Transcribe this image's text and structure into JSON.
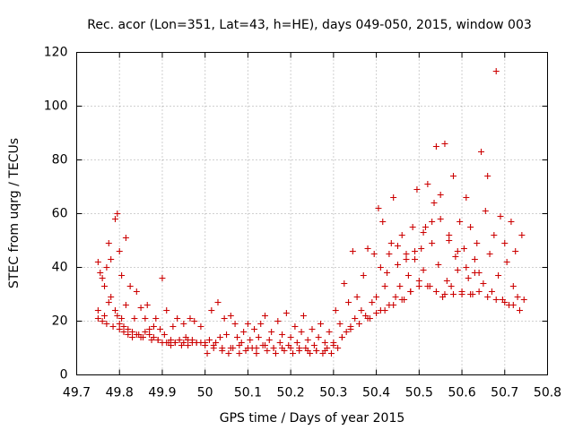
{
  "chart_data": {
    "type": "scatter",
    "title": "Rec. acor (Lon=351, Lat=43, h=HE), days 049-050, 2015, window 003",
    "xlabel": "GPS time / Days of year 2015",
    "ylabel": "STEC from uqrg / TECUs",
    "xlim": [
      49.7,
      50.8
    ],
    "ylim": [
      0,
      120
    ],
    "x_ticks": [
      "49.7",
      "49.8",
      "49.9",
      "50",
      "50.1",
      "50.2",
      "50.3",
      "50.4",
      "50.5",
      "50.6",
      "50.7",
      "50.8"
    ],
    "y_ticks": [
      "0",
      "20",
      "40",
      "60",
      "80",
      "100",
      "120"
    ],
    "grid": true,
    "marker": "+",
    "color": "#cc0000",
    "points": [
      [
        49.75,
        42
      ],
      [
        49.755,
        38
      ],
      [
        49.76,
        36
      ],
      [
        49.765,
        33
      ],
      [
        49.77,
        40
      ],
      [
        49.775,
        49
      ],
      [
        49.78,
        43
      ],
      [
        49.79,
        58
      ],
      [
        49.795,
        60
      ],
      [
        49.8,
        46
      ],
      [
        49.805,
        37
      ],
      [
        49.815,
        51
      ],
      [
        49.75,
        24
      ],
      [
        49.75,
        21
      ],
      [
        49.76,
        20
      ],
      [
        49.765,
        22
      ],
      [
        49.77,
        19
      ],
      [
        49.775,
        27
      ],
      [
        49.78,
        29
      ],
      [
        49.785,
        18
      ],
      [
        49.79,
        24
      ],
      [
        49.795,
        22
      ],
      [
        49.8,
        17
      ],
      [
        49.805,
        21
      ],
      [
        49.81,
        16
      ],
      [
        49.815,
        26
      ],
      [
        49.82,
        15
      ],
      [
        49.825,
        33
      ],
      [
        49.83,
        14
      ],
      [
        49.835,
        21
      ],
      [
        49.84,
        31
      ],
      [
        49.845,
        15
      ],
      [
        49.85,
        25
      ],
      [
        49.855,
        14
      ],
      [
        49.86,
        21
      ],
      [
        49.865,
        26
      ],
      [
        49.87,
        17
      ],
      [
        49.875,
        13
      ],
      [
        49.88,
        18
      ],
      [
        49.885,
        21
      ],
      [
        49.89,
        13
      ],
      [
        49.895,
        17
      ],
      [
        49.9,
        36
      ],
      [
        49.905,
        15
      ],
      [
        49.91,
        24
      ],
      [
        49.915,
        12
      ],
      [
        49.92,
        11
      ],
      [
        49.925,
        18
      ],
      [
        49.93,
        12
      ],
      [
        49.935,
        21
      ],
      [
        49.94,
        13
      ],
      [
        49.945,
        11
      ],
      [
        49.95,
        19
      ],
      [
        49.955,
        14
      ],
      [
        49.96,
        11
      ],
      [
        49.965,
        21
      ],
      [
        49.97,
        13
      ],
      [
        49.975,
        20
      ],
      [
        49.98,
        12
      ],
      [
        49.99,
        18
      ],
      [
        49.8,
        19
      ],
      [
        49.81,
        18
      ],
      [
        49.82,
        17
      ],
      [
        49.83,
        16
      ],
      [
        49.84,
        15
      ],
      [
        49.85,
        14
      ],
      [
        49.86,
        16
      ],
      [
        49.87,
        15
      ],
      [
        49.88,
        14
      ],
      [
        49.89,
        13
      ],
      [
        49.9,
        12
      ],
      [
        49.91,
        12
      ],
      [
        49.92,
        13
      ],
      [
        49.93,
        12
      ],
      [
        49.94,
        13
      ],
      [
        49.95,
        12
      ],
      [
        49.96,
        13
      ],
      [
        49.97,
        12
      ],
      [
        49.98,
        12
      ],
      [
        49.99,
        12
      ],
      [
        50.0,
        11
      ],
      [
        50.005,
        8
      ],
      [
        50.01,
        13
      ],
      [
        50.015,
        24
      ],
      [
        50.02,
        10
      ],
      [
        50.025,
        12
      ],
      [
        50.03,
        27
      ],
      [
        50.035,
        14
      ],
      [
        50.04,
        9
      ],
      [
        50.045,
        21
      ],
      [
        50.05,
        15
      ],
      [
        50.055,
        8
      ],
      [
        50.06,
        22
      ],
      [
        50.065,
        10
      ],
      [
        50.07,
        19
      ],
      [
        50.075,
        14
      ],
      [
        50.08,
        8
      ],
      [
        50.085,
        12
      ],
      [
        50.09,
        16
      ],
      [
        50.095,
        9
      ],
      [
        50.1,
        19
      ],
      [
        50.105,
        13
      ],
      [
        50.11,
        10
      ],
      [
        50.115,
        17
      ],
      [
        50.12,
        8
      ],
      [
        50.125,
        14
      ],
      [
        50.13,
        19
      ],
      [
        50.135,
        11
      ],
      [
        50.14,
        22
      ],
      [
        50.145,
        9
      ],
      [
        50.15,
        13
      ],
      [
        50.155,
        16
      ],
      [
        50.16,
        10
      ],
      [
        50.165,
        8
      ],
      [
        50.17,
        20
      ],
      [
        50.175,
        12
      ],
      [
        50.18,
        15
      ],
      [
        50.185,
        9
      ],
      [
        50.19,
        23
      ],
      [
        50.195,
        11
      ],
      [
        50.2,
        14
      ],
      [
        50.205,
        8
      ],
      [
        50.21,
        18
      ],
      [
        50.215,
        12
      ],
      [
        50.22,
        9
      ],
      [
        50.225,
        16
      ],
      [
        50.23,
        22
      ],
      [
        50.235,
        10
      ],
      [
        50.24,
        13
      ],
      [
        50.245,
        8
      ],
      [
        50.25,
        17
      ],
      [
        50.255,
        11
      ],
      [
        50.26,
        9
      ],
      [
        50.265,
        14
      ],
      [
        50.27,
        19
      ],
      [
        50.275,
        8
      ],
      [
        50.28,
        12
      ],
      [
        50.285,
        10
      ],
      [
        50.29,
        16
      ],
      [
        50.295,
        8
      ],
      [
        50.0,
        12
      ],
      [
        50.02,
        11
      ],
      [
        50.04,
        10
      ],
      [
        50.06,
        10
      ],
      [
        50.08,
        11
      ],
      [
        50.1,
        10
      ],
      [
        50.12,
        10
      ],
      [
        50.14,
        11
      ],
      [
        50.16,
        10
      ],
      [
        50.18,
        10
      ],
      [
        50.2,
        10
      ],
      [
        50.22,
        10
      ],
      [
        50.24,
        9
      ],
      [
        50.26,
        9
      ],
      [
        50.28,
        9
      ],
      [
        50.3,
        12
      ],
      [
        50.305,
        24
      ],
      [
        50.31,
        10
      ],
      [
        50.315,
        19
      ],
      [
        50.32,
        14
      ],
      [
        50.325,
        34
      ],
      [
        50.33,
        16
      ],
      [
        50.335,
        27
      ],
      [
        50.34,
        18
      ],
      [
        50.345,
        46
      ],
      [
        50.35,
        21
      ],
      [
        50.355,
        29
      ],
      [
        50.36,
        19
      ],
      [
        50.365,
        24
      ],
      [
        50.37,
        37
      ],
      [
        50.375,
        22
      ],
      [
        50.38,
        47
      ],
      [
        50.385,
        21
      ],
      [
        50.39,
        27
      ],
      [
        50.395,
        45
      ],
      [
        50.4,
        29
      ],
      [
        50.405,
        62
      ],
      [
        50.41,
        24
      ],
      [
        50.415,
        57
      ],
      [
        50.42,
        33
      ],
      [
        50.425,
        38
      ],
      [
        50.43,
        26
      ],
      [
        50.435,
        49
      ],
      [
        50.44,
        66
      ],
      [
        50.445,
        29
      ],
      [
        50.45,
        41
      ],
      [
        50.455,
        33
      ],
      [
        50.46,
        52
      ],
      [
        50.465,
        28
      ],
      [
        50.47,
        45
      ],
      [
        50.475,
        37
      ],
      [
        50.48,
        31
      ],
      [
        50.485,
        55
      ],
      [
        50.49,
        43
      ],
      [
        50.495,
        69
      ],
      [
        50.5,
        35
      ],
      [
        50.505,
        47
      ],
      [
        50.51,
        39
      ],
      [
        50.515,
        55
      ],
      [
        50.52,
        71
      ],
      [
        50.525,
        33
      ],
      [
        50.53,
        49
      ],
      [
        50.535,
        64
      ],
      [
        50.54,
        85
      ],
      [
        50.545,
        41
      ],
      [
        50.55,
        67
      ],
      [
        50.555,
        29
      ],
      [
        50.56,
        86
      ],
      [
        50.565,
        35
      ],
      [
        50.57,
        52
      ],
      [
        50.575,
        33
      ],
      [
        50.58,
        74
      ],
      [
        50.585,
        44
      ],
      [
        50.59,
        39
      ],
      [
        50.595,
        57
      ],
      [
        50.6,
        31
      ],
      [
        50.605,
        47
      ],
      [
        50.61,
        66
      ],
      [
        50.615,
        36
      ],
      [
        50.62,
        55
      ],
      [
        50.625,
        30
      ],
      [
        50.63,
        43
      ],
      [
        50.635,
        49
      ],
      [
        50.64,
        38
      ],
      [
        50.645,
        83
      ],
      [
        50.65,
        34
      ],
      [
        50.655,
        61
      ],
      [
        50.66,
        74
      ],
      [
        50.665,
        45
      ],
      [
        50.67,
        31
      ],
      [
        50.675,
        52
      ],
      [
        50.68,
        113
      ],
      [
        50.685,
        37
      ],
      [
        50.69,
        59
      ],
      [
        50.695,
        28
      ],
      [
        50.7,
        49
      ],
      [
        50.705,
        42
      ],
      [
        50.71,
        26
      ],
      [
        50.715,
        57
      ],
      [
        50.72,
        33
      ],
      [
        50.725,
        46
      ],
      [
        50.73,
        29
      ],
      [
        50.735,
        24
      ],
      [
        50.74,
        52
      ],
      [
        50.745,
        28
      ],
      [
        50.3,
        11
      ],
      [
        50.32,
        14
      ],
      [
        50.34,
        17
      ],
      [
        50.36,
        19
      ],
      [
        50.38,
        21
      ],
      [
        50.4,
        23
      ],
      [
        50.42,
        24
      ],
      [
        50.44,
        26
      ],
      [
        50.46,
        28
      ],
      [
        50.48,
        31
      ],
      [
        50.5,
        33
      ],
      [
        50.52,
        33
      ],
      [
        50.54,
        31
      ],
      [
        50.56,
        30
      ],
      [
        50.58,
        30
      ],
      [
        50.6,
        30
      ],
      [
        50.62,
        30
      ],
      [
        50.64,
        31
      ],
      [
        50.66,
        29
      ],
      [
        50.68,
        28
      ],
      [
        50.7,
        27
      ],
      [
        50.72,
        26
      ],
      [
        50.41,
        40
      ],
      [
        50.43,
        45
      ],
      [
        50.45,
        48
      ],
      [
        50.47,
        43
      ],
      [
        50.49,
        46
      ],
      [
        50.51,
        53
      ],
      [
        50.53,
        57
      ],
      [
        50.55,
        58
      ],
      [
        50.57,
        50
      ],
      [
        50.59,
        46
      ],
      [
        50.61,
        40
      ],
      [
        50.63,
        38
      ]
    ]
  }
}
